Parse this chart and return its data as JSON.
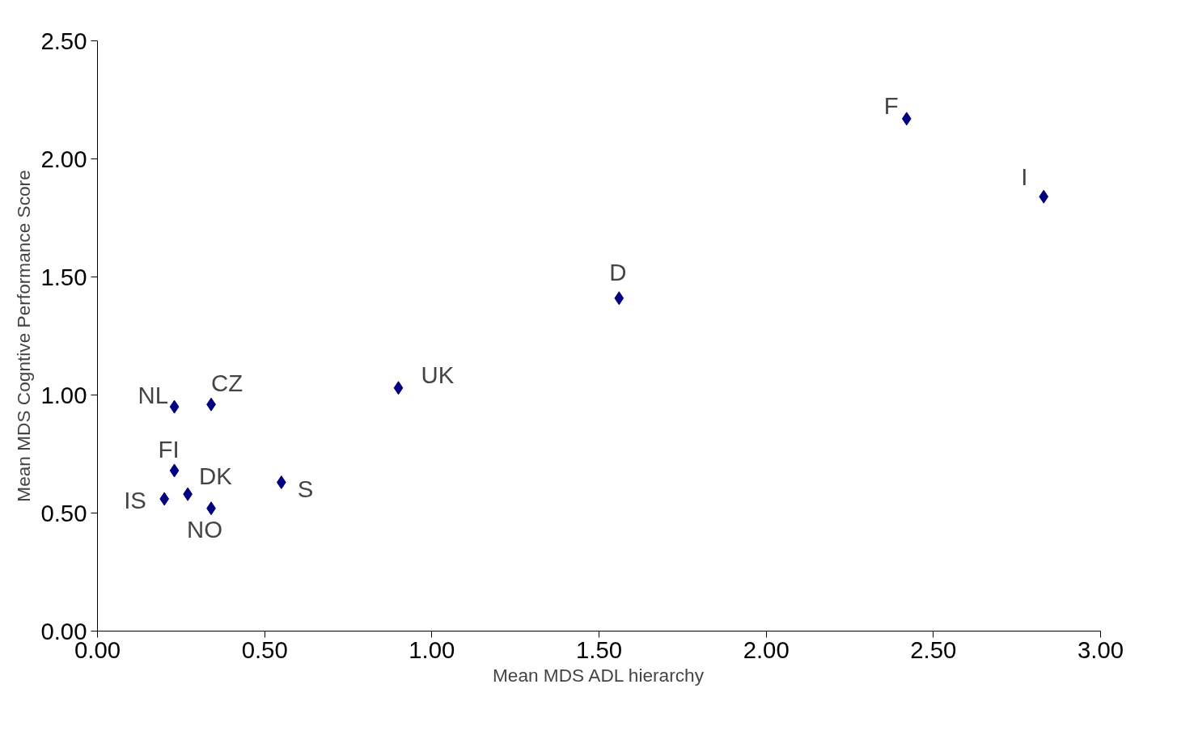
{
  "chart_data": {
    "type": "scatter",
    "xlabel": "Mean MDS ADL hierarchy",
    "ylabel": "Mean MDS Cogntive Performance Score",
    "series": [
      {
        "color": "#000080",
        "x": [
          2.42,
          2.83,
          1.56,
          0.9,
          0.23,
          0.34,
          0.23,
          0.27,
          0.2,
          0.34,
          0.55
        ],
        "values": [
          2.17,
          1.84,
          1.41,
          1.03,
          0.95,
          0.96,
          0.68,
          0.58,
          0.56,
          0.52,
          0.63
        ]
      }
    ],
    "annotations": [
      {
        "text": "F",
        "x": 2.42,
        "y": 2.17
      },
      {
        "text": "I",
        "x": 2.83,
        "y": 1.84
      },
      {
        "text": "D",
        "x": 1.56,
        "y": 1.41
      },
      {
        "text": "UK",
        "x": 0.9,
        "y": 1.03
      },
      {
        "text": "NL",
        "x": 0.23,
        "y": 0.95
      },
      {
        "text": "CZ",
        "x": 0.34,
        "y": 0.96
      },
      {
        "text": "FI",
        "x": 0.23,
        "y": 0.68
      },
      {
        "text": "DK",
        "x": 0.27,
        "y": 0.58
      },
      {
        "text": "IS",
        "x": 0.2,
        "y": 0.56
      },
      {
        "text": "NO",
        "x": 0.34,
        "y": 0.52
      },
      {
        "text": "S",
        "x": 0.55,
        "y": 0.63
      }
    ],
    "xlim": [
      0,
      3
    ],
    "ylim": [
      0,
      2.5
    ],
    "xticks": [
      {
        "value": 0,
        "label": "0.00"
      },
      {
        "value": 0.5,
        "label": "0.50"
      },
      {
        "value": 1,
        "label": "1.00"
      },
      {
        "value": 1.5,
        "label": "1.50"
      },
      {
        "value": 2,
        "label": "2.00"
      },
      {
        "value": 2.5,
        "label": "2.50"
      },
      {
        "value": 3,
        "label": "3.00"
      }
    ],
    "yticks": [
      {
        "value": 0,
        "label": "0.00"
      },
      {
        "value": 0.5,
        "label": "0.50"
      },
      {
        "value": 1,
        "label": "1.00"
      },
      {
        "value": 1.5,
        "label": "1.50"
      },
      {
        "value": 2,
        "label": "2.00"
      },
      {
        "value": 2.5,
        "label": "2.50"
      }
    ],
    "marker": "diamond",
    "grid": false
  }
}
